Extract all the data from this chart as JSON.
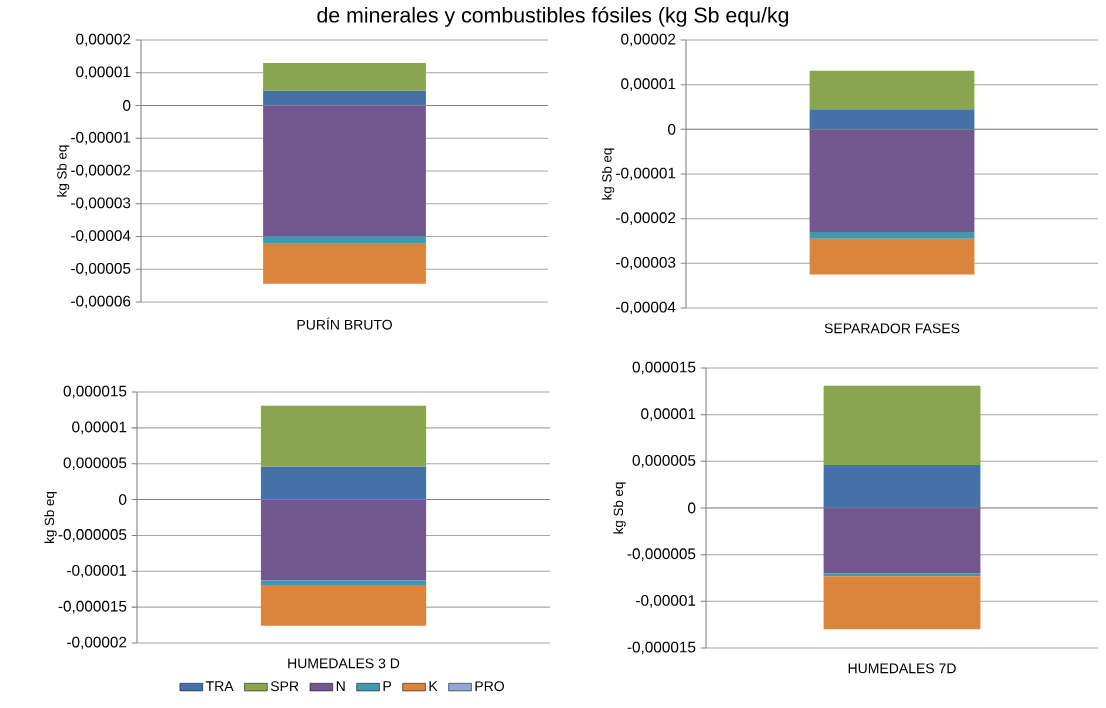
{
  "chart_data": [
    {
      "type": "bar",
      "stacked": true,
      "title": "de minerales y combustibles fósiles (kg Sb equ/kg",
      "ylabel": "kg Sb eq",
      "categories": [
        "PURÍN BRUTO"
      ],
      "grid": "y",
      "legend": false,
      "ylim": [
        -6e-05,
        2e-05
      ],
      "yticks": [
        {
          "value": -6e-05,
          "label": "-0,00006"
        },
        {
          "value": -5e-05,
          "label": "-0,00005"
        },
        {
          "value": -4e-05,
          "label": "-0,00004"
        },
        {
          "value": -3e-05,
          "label": "-0,00003"
        },
        {
          "value": -2e-05,
          "label": "-0,00002"
        },
        {
          "value": -1e-05,
          "label": "-0,00001"
        },
        0,
        {
          "value": 1e-05,
          "label": "0,00001"
        },
        {
          "value": 2e-05,
          "label": "0,00002"
        }
      ],
      "series": [
        {
          "color": "#4472a8",
          "values": [
            4.5e-06
          ]
        },
        {
          "color": "#89a54e",
          "values": [
            8.5e-06
          ]
        },
        {
          "color": "#71588f",
          "values": [
            -4e-05
          ]
        },
        {
          "color": "#4198af",
          "values": [
            -2.2e-06
          ]
        },
        {
          "color": "#db843d",
          "values": [
            -1.22e-05
          ]
        },
        {
          "color": "#93a9cf",
          "values": [
            0
          ]
        }
      ]
    },
    {
      "type": "bar",
      "stacked": true,
      "ylabel": "kg Sb eq",
      "categories": [
        "SEPARADOR FASES"
      ],
      "grid": "y",
      "legend": false,
      "ylim": [
        -4e-05,
        2e-05
      ],
      "yticks": [
        {
          "value": -4e-05,
          "label": "-0,00004"
        },
        {
          "value": -3e-05,
          "label": "-0,00003"
        },
        {
          "value": -2e-05,
          "label": "-0,00002"
        },
        {
          "value": -1e-05,
          "label": "-0,00001"
        },
        0,
        {
          "value": 1e-05,
          "label": "0,00001"
        },
        {
          "value": 2e-05,
          "label": "0,00002"
        }
      ],
      "series": [
        {
          "color": "#4472a8",
          "values": [
            4.5e-06
          ]
        },
        {
          "color": "#89a54e",
          "values": [
            8.6e-06
          ]
        },
        {
          "color": "#71588f",
          "values": [
            -2.3e-05
          ]
        },
        {
          "color": "#4198af",
          "values": [
            -1.5e-06
          ]
        },
        {
          "color": "#db843d",
          "values": [
            -8e-06
          ]
        },
        {
          "color": "#93a9cf",
          "values": [
            0
          ]
        }
      ]
    },
    {
      "type": "bar",
      "stacked": true,
      "ylabel": "kg Sb eq",
      "categories": [
        "HUMEDALES 3 D"
      ],
      "grid": "y",
      "legend": "bottom",
      "ylim": [
        -2e-05,
        1.5e-05
      ],
      "yticks": [
        {
          "value": -2e-05,
          "label": "-0,00002"
        },
        {
          "value": -1.5e-05,
          "label": "-0,000015"
        },
        {
          "value": -1e-05,
          "label": "-0,00001"
        },
        {
          "value": -5e-06,
          "label": "-0,000005"
        },
        0,
        {
          "value": 5e-06,
          "label": "0,000005"
        },
        {
          "value": 1e-05,
          "label": "0,00001"
        },
        {
          "value": 1.5e-05,
          "label": "0,000015"
        }
      ],
      "series": [
        {
          "name": "TRA",
          "color": "#4472a8",
          "values": [
            4.6e-06
          ]
        },
        {
          "name": "SPR",
          "color": "#89a54e",
          "values": [
            8.5e-06
          ]
        },
        {
          "name": "N",
          "color": "#71588f",
          "values": [
            -1.13e-05
          ]
        },
        {
          "name": "P",
          "color": "#4198af",
          "values": [
            -6e-07
          ]
        },
        {
          "name": "K",
          "color": "#db843d",
          "values": [
            -5.7e-06
          ]
        },
        {
          "name": "PRO",
          "color": "#93a9cf",
          "values": [
            0
          ]
        }
      ]
    },
    {
      "type": "bar",
      "stacked": true,
      "ylabel": "kg Sb eq",
      "categories": [
        "HUMEDALES 7D"
      ],
      "grid": "y",
      "legend": false,
      "ylim": [
        -1.5e-05,
        1.5e-05
      ],
      "yticks": [
        {
          "value": -1.5e-05,
          "label": "-0,000015"
        },
        {
          "value": -1e-05,
          "label": "-0,00001"
        },
        {
          "value": -5e-06,
          "label": "-0,000005"
        },
        0,
        {
          "value": 5e-06,
          "label": "0,000005"
        },
        {
          "value": 1e-05,
          "label": "0,00001"
        },
        {
          "value": 1.5e-05,
          "label": "0,000015"
        }
      ],
      "series": [
        {
          "color": "#4472a8",
          "values": [
            4.6e-06
          ]
        },
        {
          "color": "#89a54e",
          "values": [
            8.5e-06
          ]
        },
        {
          "color": "#71588f",
          "values": [
            -7e-06
          ]
        },
        {
          "color": "#4198af",
          "values": [
            -3e-07
          ]
        },
        {
          "color": "#db843d",
          "values": [
            -5.7e-06
          ]
        },
        {
          "color": "#93a9cf",
          "values": [
            0
          ]
        }
      ]
    }
  ]
}
